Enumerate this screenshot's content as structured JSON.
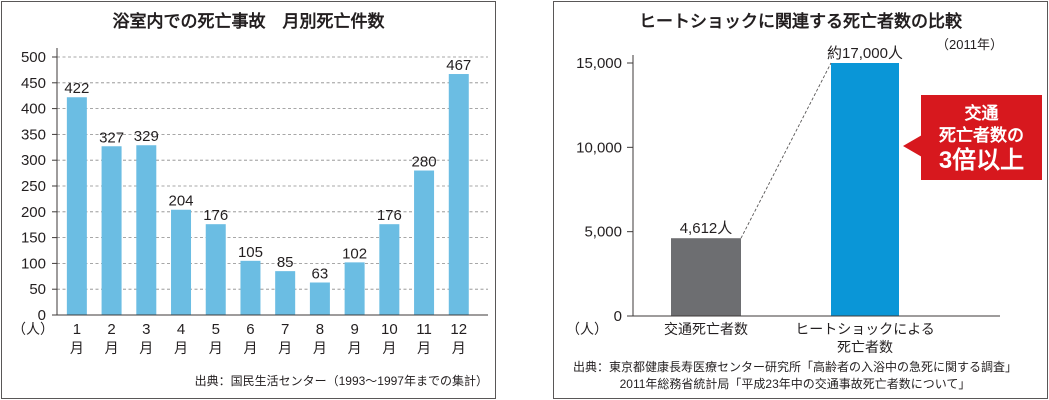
{
  "chart_data": [
    {
      "type": "bar",
      "title": "浴室内での死亡事故　月別死亡件数",
      "categories": [
        "1月",
        "2月",
        "3月",
        "4月",
        "5月",
        "6月",
        "7月",
        "8月",
        "9月",
        "10月",
        "11月",
        "12月"
      ],
      "values": [
        422,
        327,
        329,
        204,
        176,
        105,
        85,
        63,
        102,
        176,
        280,
        467
      ],
      "ylabel": "（人）",
      "ylim": [
        0,
        500
      ],
      "yticks": [
        0,
        50,
        100,
        150,
        200,
        250,
        300,
        350,
        400,
        450,
        500
      ],
      "grid": true,
      "color": "#6bbde3",
      "source": "出典：国民生活センター（1993〜1997年までの集計）"
    },
    {
      "type": "bar",
      "title": "ヒートショックに関連する死亡者数の比較",
      "subtitle": "（2011年）",
      "categories": [
        "交通死亡者数",
        "ヒートショックによる死亡者数"
      ],
      "values": [
        4612,
        17000
      ],
      "value_labels": [
        "4,612人",
        "約17,000人"
      ],
      "ylabel": "（人）",
      "ylim": [
        0,
        15000
      ],
      "yticks": [
        0,
        5000,
        10000,
        15000
      ],
      "grid": false,
      "colors": [
        "#6d6e71",
        "#0a96d7"
      ],
      "callout": {
        "lines": [
          "交通",
          "死亡者数の",
          "3倍以上"
        ],
        "color": "#d7181e"
      },
      "source": [
        "出典：東京都健康長寿医療センター研究所「高齢者の入浴中の急死に関する調査」",
        "2011年総務省統計局「平成23年中の交通事故死亡者数について」"
      ]
    }
  ]
}
